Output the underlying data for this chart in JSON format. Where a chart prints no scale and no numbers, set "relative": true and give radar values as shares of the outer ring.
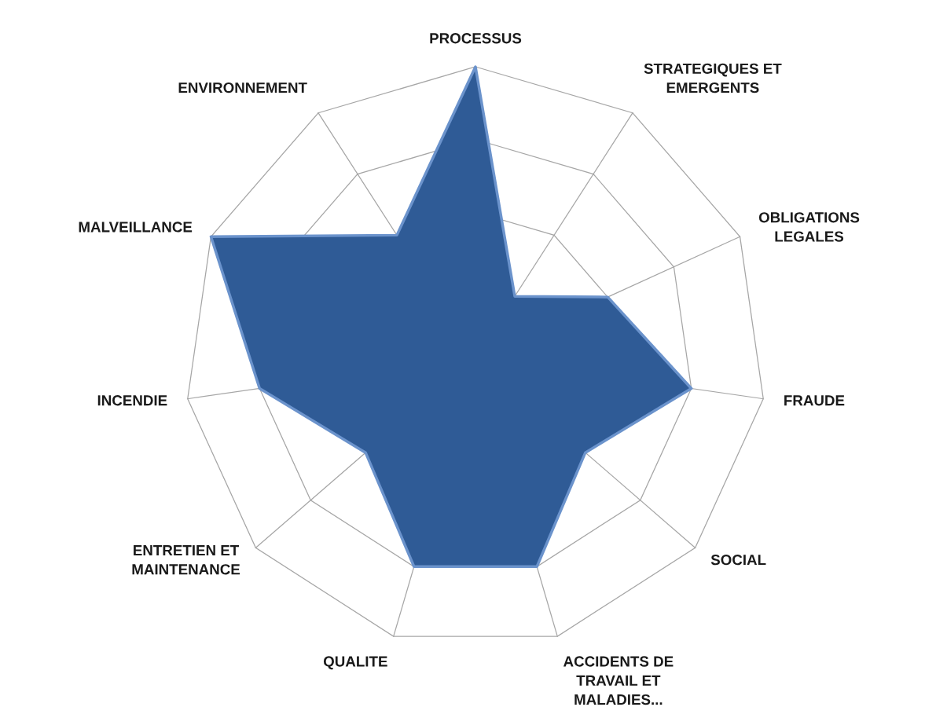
{
  "chart_data": {
    "type": "radar",
    "relative": true,
    "grid": true,
    "categories": [
      "PROCESSUS",
      "STRATEGIQUES ET\nEMERGENTS",
      "OBLIGATIONS\nLEGALES",
      "FRAUDE",
      "SOCIAL",
      "ACCIDENTS DE\nTRAVAIL ET\nMALADIES...",
      "QUALITE",
      "ENTRETIEN ET\nMAINTENANCE",
      "INCENDIE",
      "MALVEILLANCE",
      "ENVIRONNEMENT"
    ],
    "series": [
      {
        "color": "#2f5b96",
        "values": [
          1.0,
          0.25,
          0.5,
          0.75,
          0.5,
          0.75,
          0.75,
          0.5,
          0.75,
          1.0,
          0.5
        ]
      }
    ]
  }
}
